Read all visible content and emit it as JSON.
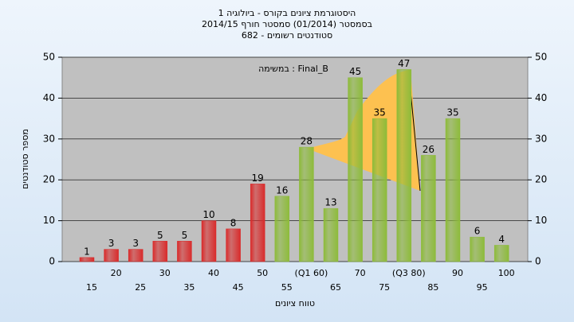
{
  "chart_data": {
    "type": "bar",
    "title": "היסטוגרמת ציונים בקורס - ביולוגיה 1",
    "subtitle": "בסמסטר  (01/2014)  סמסטר חורף 2014/15",
    "subtitle2": "סטודנטים רשומים - 682",
    "annotation": "במשימה : Final_B",
    "x_label": "טווח ציונים",
    "y_label": "מספר סטודנטים",
    "categories": [
      "15",
      "20",
      "25",
      "30",
      "35",
      "40",
      "45",
      "50",
      "55",
      "(Q1 60)",
      "65",
      "70",
      "75",
      "(Q3 80)",
      "85",
      "90",
      "95",
      "100"
    ],
    "values": [
      1,
      3,
      3,
      5,
      5,
      10,
      8,
      19,
      16,
      28,
      13,
      45,
      35,
      47,
      26,
      35,
      6,
      4
    ],
    "colors": [
      "#d92b2b",
      "#d92b2b",
      "#d92b2b",
      "#d92b2b",
      "#d92b2b",
      "#d92b2b",
      "#d92b2b",
      "#d92b2b",
      "#8dbb3a",
      "#8dbb3a",
      "#8dbb3a",
      "#8dbb3a",
      "#8dbb3a",
      "#8dbb3a",
      "#8dbb3a",
      "#8dbb3a",
      "#8dbb3a",
      "#8dbb3a"
    ],
    "ylim": [
      0,
      50
    ],
    "yticks": [
      0,
      10,
      20,
      30,
      40,
      50
    ],
    "y2lim": [
      0,
      50
    ],
    "y2ticks": [
      0,
      10,
      20,
      30,
      40,
      50
    ],
    "grid": true
  }
}
